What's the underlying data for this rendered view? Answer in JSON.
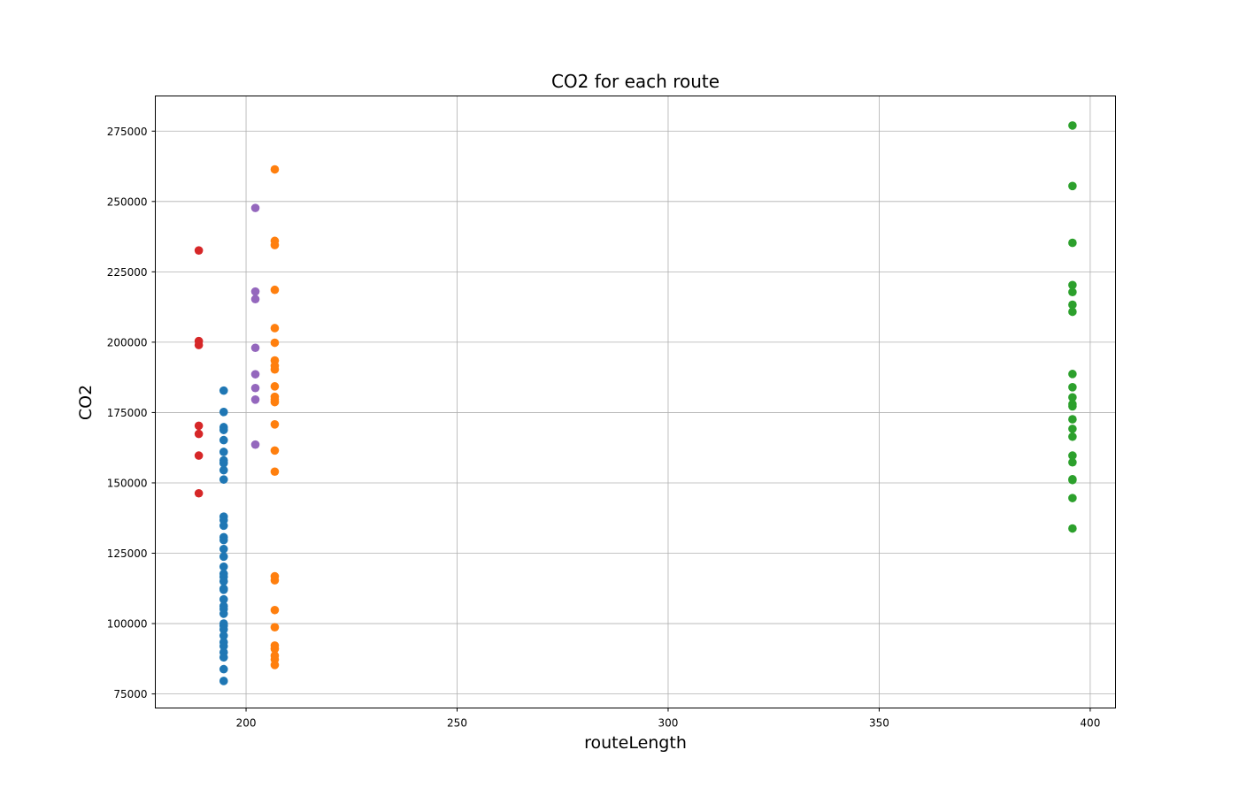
{
  "chart_data": {
    "type": "scatter",
    "title": "CO2 for each route",
    "xlabel": "routeLength",
    "ylabel": "CO2",
    "xlim": [
      178.5,
      406.0
    ],
    "ylim": [
      70000,
      287500
    ],
    "x_ticks": [
      200,
      250,
      300,
      350,
      400
    ],
    "y_ticks": [
      75000,
      100000,
      125000,
      150000,
      175000,
      200000,
      225000,
      250000,
      275000
    ],
    "grid": true,
    "legend": "none",
    "series": [
      {
        "color": "#1f77b4",
        "points": [
          [
            194.7,
            182800
          ],
          [
            194.7,
            175200
          ],
          [
            194.7,
            169800
          ],
          [
            194.7,
            168800
          ],
          [
            194.7,
            165200
          ],
          [
            194.7,
            161000
          ],
          [
            194.7,
            158000
          ],
          [
            194.7,
            157000
          ],
          [
            194.7,
            154500
          ],
          [
            194.7,
            151200
          ],
          [
            194.7,
            138000
          ],
          [
            194.7,
            136800
          ],
          [
            194.7,
            134800
          ],
          [
            194.7,
            130700
          ],
          [
            194.7,
            129700
          ],
          [
            194.7,
            126500
          ],
          [
            194.7,
            123800
          ],
          [
            194.7,
            120200
          ],
          [
            194.7,
            117700
          ],
          [
            194.7,
            116600
          ],
          [
            194.7,
            115000
          ],
          [
            194.7,
            112400
          ],
          [
            194.7,
            112000
          ],
          [
            194.7,
            108600
          ],
          [
            194.7,
            106200
          ],
          [
            194.7,
            105200
          ],
          [
            194.7,
            103500
          ],
          [
            194.7,
            100000
          ],
          [
            194.7,
            99200
          ],
          [
            194.7,
            97900
          ],
          [
            194.7,
            95700
          ],
          [
            194.7,
            93400
          ],
          [
            194.7,
            92000
          ],
          [
            194.7,
            89800
          ],
          [
            194.7,
            88000
          ],
          [
            194.7,
            83800
          ],
          [
            194.7,
            79600
          ]
        ]
      },
      {
        "color": "#ff7f0e",
        "points": [
          [
            206.8,
            261400
          ],
          [
            206.8,
            236000
          ],
          [
            206.8,
            234500
          ],
          [
            206.8,
            218600
          ],
          [
            206.8,
            205000
          ],
          [
            206.8,
            199800
          ],
          [
            206.8,
            193500
          ],
          [
            206.8,
            191600
          ],
          [
            206.8,
            190300
          ],
          [
            206.8,
            184300
          ],
          [
            206.8,
            180600
          ],
          [
            206.8,
            179700
          ],
          [
            206.8,
            178700
          ],
          [
            206.8,
            170800
          ],
          [
            206.8,
            161500
          ],
          [
            206.8,
            154000
          ],
          [
            206.8,
            116800
          ],
          [
            206.8,
            115400
          ],
          [
            206.8,
            104800
          ],
          [
            206.8,
            98700
          ],
          [
            206.8,
            92200
          ],
          [
            206.8,
            91000
          ],
          [
            206.8,
            88600
          ],
          [
            206.8,
            87300
          ],
          [
            206.8,
            85300
          ]
        ]
      },
      {
        "color": "#2ca02c",
        "points": [
          [
            395.8,
            277000
          ],
          [
            395.8,
            255500
          ],
          [
            395.8,
            235300
          ],
          [
            395.8,
            220300
          ],
          [
            395.8,
            217800
          ],
          [
            395.8,
            213300
          ],
          [
            395.8,
            210800
          ],
          [
            395.8,
            188700
          ],
          [
            395.8,
            184000
          ],
          [
            395.8,
            180400
          ],
          [
            395.8,
            178000
          ],
          [
            395.8,
            177200
          ],
          [
            395.8,
            172600
          ],
          [
            395.8,
            169200
          ],
          [
            395.8,
            166400
          ],
          [
            395.8,
            159700
          ],
          [
            395.8,
            157300
          ],
          [
            395.8,
            151300
          ],
          [
            395.8,
            151000
          ],
          [
            395.8,
            144600
          ],
          [
            395.8,
            133800
          ]
        ]
      },
      {
        "color": "#d62728",
        "points": [
          [
            188.8,
            232600
          ],
          [
            188.8,
            200400
          ],
          [
            188.8,
            199000
          ],
          [
            188.8,
            170300
          ],
          [
            188.8,
            167400
          ],
          [
            188.8,
            159700
          ],
          [
            188.8,
            146300
          ]
        ]
      },
      {
        "color": "#9467bd",
        "points": [
          [
            202.2,
            247700
          ],
          [
            202.2,
            218000
          ],
          [
            202.2,
            215300
          ],
          [
            202.2,
            198000
          ],
          [
            202.2,
            188600
          ],
          [
            202.2,
            183700
          ],
          [
            202.2,
            179600
          ],
          [
            202.2,
            163600
          ]
        ]
      }
    ]
  }
}
